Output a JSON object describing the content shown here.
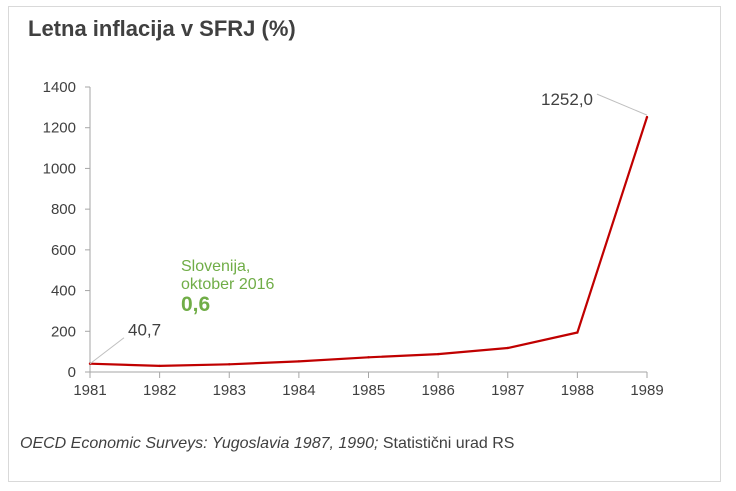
{
  "chart_data": {
    "type": "line",
    "title": "Letna inflacija v SFRJ (%)",
    "x": [
      1981,
      1982,
      1983,
      1984,
      1985,
      1986,
      1987,
      1988,
      1989
    ],
    "xticks": [
      "1981",
      "1982",
      "1983",
      "1984",
      "1985",
      "1986",
      "1987",
      "1988",
      "1989"
    ],
    "yticks": [
      "0",
      "200",
      "400",
      "600",
      "800",
      "1000",
      "1200",
      "1400"
    ],
    "ylim": [
      0,
      1400
    ],
    "series": [
      {
        "values": [
          40.7,
          30,
          38,
          52,
          72,
          88,
          118,
          194,
          1252.0
        ],
        "color": "#c00000"
      }
    ],
    "labels": {
      "first": "40,7",
      "last": "1252,0"
    },
    "grid": false,
    "annotation": {
      "line1": "Slovenija,",
      "line2": "oktober 2016",
      "value": "0,6",
      "color": "#70ad47"
    }
  },
  "source": {
    "italic": "OECD Economic Surveys: Yugoslavia 1987, 1990;",
    "plain": " Statistični urad RS"
  }
}
